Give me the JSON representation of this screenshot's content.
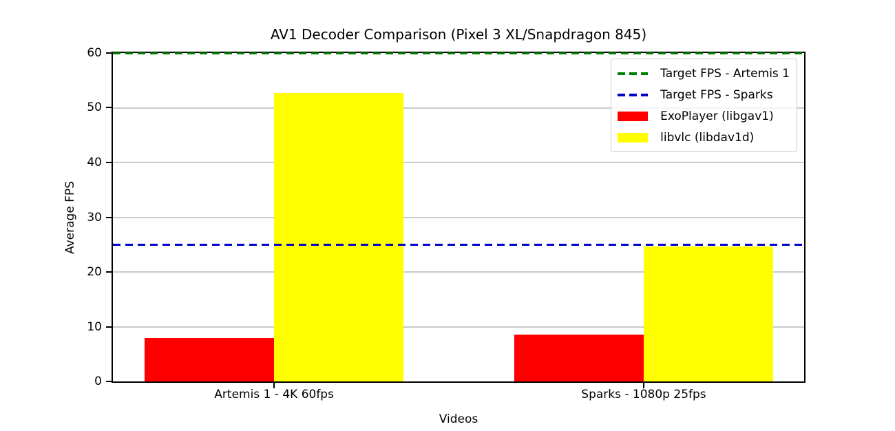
{
  "chart_data": {
    "type": "bar",
    "title": "AV1 Decoder Comparison (Pixel 3 XL/Snapdragon 845)",
    "xlabel": "Videos",
    "ylabel": "Average FPS",
    "ylim": [
      0,
      60
    ],
    "yticks": [
      0,
      10,
      20,
      30,
      40,
      50,
      60
    ],
    "grid": "horizontal",
    "grid_color": "#c9c9c9",
    "axis_color": "#000000",
    "categories": [
      "Artemis 1 - 4K 60fps",
      "Sparks - 1080p 25fps"
    ],
    "series": [
      {
        "name": "ExoPlayer (libgav1)",
        "color": "#ff0000",
        "values": [
          7.9,
          8.6
        ]
      },
      {
        "name": "libvlc (libdav1d)",
        "color": "#ffff00",
        "values": [
          52.7,
          24.6
        ]
      }
    ],
    "target_lines": [
      {
        "name": "Target FPS - Artemis 1",
        "color": "#008000",
        "value": 60,
        "style": "dashed"
      },
      {
        "name": "Target FPS - Sparks",
        "color": "#0000cc",
        "value": 25,
        "style": "dashed"
      }
    ],
    "legend_position": "upper right",
    "layout": {
      "group_centers_frac": [
        0.2332,
        0.7679
      ],
      "bar_width_frac": 0.1875
    }
  }
}
